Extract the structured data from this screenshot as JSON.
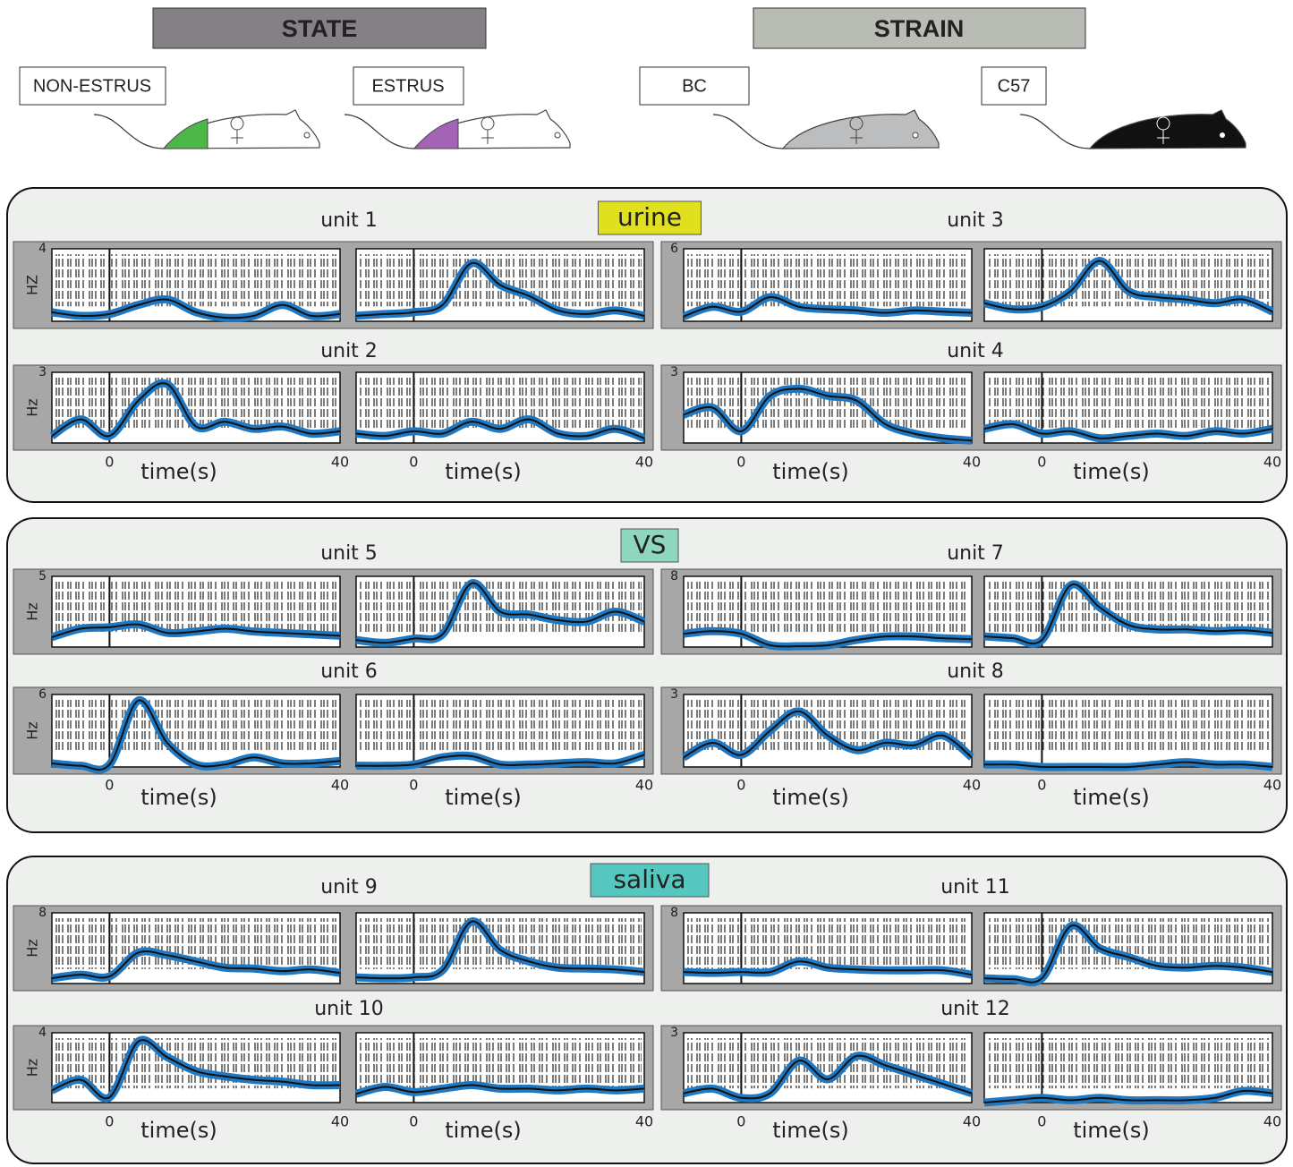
{
  "header": {
    "state": "STATE",
    "strain": "STRAIN",
    "mice": [
      "NON-ESTRUS",
      "ESTRUS",
      "BC",
      "C57"
    ]
  },
  "groups": [
    {
      "label": "urine",
      "color": "#e1e01e",
      "x": [
        -10,
        -5,
        0,
        5,
        10,
        15,
        20,
        25,
        30,
        35,
        40
      ],
      "xlim": [
        -10,
        40
      ],
      "xticks": [
        0,
        40
      ],
      "xlabel": "time(s)",
      "units": [
        {
          "name": "unit 1",
          "ylabel": "HZ",
          "ylim": [
            0,
            4
          ],
          "yticks": [
            4
          ],
          "panels": [
            [
              0.5,
              0.3,
              0.4,
              0.9,
              1.2,
              0.5,
              0.2,
              0.3,
              0.9,
              0.3,
              0.4
            ],
            [
              0.3,
              0.4,
              0.5,
              0.9,
              3.2,
              2.0,
              1.4,
              0.6,
              0.4,
              0.6,
              0.3
            ]
          ]
        },
        {
          "name": "unit 2",
          "ylabel": "Hz",
          "ylim": [
            0,
            3
          ],
          "yticks": [
            3
          ],
          "panels": [
            [
              0.3,
              1.0,
              0.3,
              1.8,
              2.5,
              0.7,
              0.9,
              0.6,
              0.7,
              0.4,
              0.5
            ],
            [
              0.4,
              0.3,
              0.5,
              0.4,
              0.9,
              0.6,
              1.0,
              0.4,
              0.3,
              0.6,
              0.2
            ]
          ]
        },
        {
          "name": "unit 3",
          "ylim": [
            0,
            6
          ],
          "yticks": [
            6
          ],
          "panels": [
            [
              0.4,
              1.2,
              0.8,
              2.0,
              1.2,
              1.0,
              0.9,
              0.7,
              0.9,
              0.8,
              0.7
            ],
            [
              1.5,
              1.0,
              1.2,
              2.5,
              5.0,
              2.5,
              2.0,
              1.8,
              1.5,
              1.8,
              0.8
            ]
          ]
        },
        {
          "name": "unit 4",
          "ylim": [
            0,
            3
          ],
          "yticks": [
            3
          ],
          "panels": [
            [
              1.2,
              1.5,
              0.5,
              2.0,
              2.3,
              2.0,
              1.8,
              0.8,
              0.4,
              0.2,
              0.1
            ],
            [
              0.6,
              0.8,
              0.4,
              0.5,
              0.2,
              0.3,
              0.4,
              0.3,
              0.5,
              0.4,
              0.6
            ]
          ]
        }
      ]
    },
    {
      "label": "VS",
      "color": "#8fd6bf",
      "x": [
        -10,
        -5,
        0,
        5,
        10,
        15,
        20,
        25,
        30,
        35,
        40
      ],
      "xlim": [
        -10,
        40
      ],
      "xticks": [
        0,
        40
      ],
      "xlabel": "time(s)",
      "units": [
        {
          "name": "unit 5",
          "ylabel": "Hz",
          "ylim": [
            0,
            5
          ],
          "yticks": [
            5
          ],
          "panels": [
            [
              0.7,
              1.3,
              1.4,
              1.6,
              1.0,
              1.1,
              1.3,
              1.1,
              1.0,
              0.9,
              0.8
            ],
            [
              0.5,
              0.3,
              0.6,
              0.9,
              4.5,
              2.5,
              2.3,
              1.9,
              1.8,
              2.5,
              1.8
            ]
          ]
        },
        {
          "name": "unit 6",
          "ylabel": "Hz",
          "ylim": [
            0,
            6
          ],
          "yticks": [
            6
          ],
          "panels": [
            [
              0.3,
              0.1,
              0.2,
              5.5,
              2.0,
              0.2,
              0.2,
              0.8,
              0.3,
              0.3,
              0.5
            ],
            [
              0.1,
              0.1,
              0.2,
              0.8,
              0.9,
              0.2,
              0.2,
              0.3,
              0.4,
              0.3,
              1.0
            ]
          ]
        },
        {
          "name": "unit 7",
          "ylim": [
            0,
            8
          ],
          "yticks": [
            8
          ],
          "panels": [
            [
              1.5,
              1.8,
              1.5,
              0.2,
              0.1,
              0.2,
              0.8,
              1.2,
              1.2,
              1.0,
              0.9
            ],
            [
              1.2,
              1.0,
              0.8,
              7.0,
              4.5,
              2.5,
              2.0,
              2.0,
              1.8,
              1.9,
              1.6
            ]
          ]
        },
        {
          "name": "unit 8",
          "ylim": [
            0,
            3
          ],
          "yticks": [
            3
          ],
          "panels": [
            [
              0.4,
              1.0,
              0.5,
              1.5,
              2.3,
              1.3,
              0.7,
              1.0,
              0.9,
              1.3,
              0.4
            ],
            [
              0.1,
              0.1,
              0.0,
              0.0,
              0.0,
              0.0,
              0.1,
              0.2,
              0.1,
              0.1,
              0.0
            ]
          ]
        }
      ]
    },
    {
      "label": "saliva",
      "color": "#55c7bf",
      "x": [
        -10,
        -5,
        0,
        5,
        10,
        15,
        20,
        25,
        30,
        35,
        40
      ],
      "xlim": [
        -10,
        40
      ],
      "xticks": [
        0,
        40
      ],
      "xlabel": "time(s)",
      "units": [
        {
          "name": "unit 9",
          "ylabel": "Hz",
          "ylim": [
            0,
            8
          ],
          "yticks": [
            8
          ],
          "panels": [
            [
              0.6,
              1.0,
              0.8,
              3.5,
              3.2,
              2.5,
              1.8,
              1.7,
              1.4,
              1.6,
              1.2
            ],
            [
              0.7,
              0.6,
              0.7,
              1.5,
              7.0,
              3.8,
              2.5,
              1.8,
              1.7,
              1.6,
              1.3
            ]
          ]
        },
        {
          "name": "unit 10",
          "ylabel": "Hz",
          "ylim": [
            0,
            4
          ],
          "yticks": [
            4
          ],
          "panels": [
            [
              0.7,
              1.3,
              0.3,
              3.5,
              2.6,
              1.8,
              1.5,
              1.3,
              1.2,
              1.0,
              1.0
            ],
            [
              0.5,
              0.9,
              0.6,
              0.8,
              1.0,
              0.8,
              0.8,
              0.7,
              0.8,
              0.7,
              0.8
            ]
          ]
        },
        {
          "name": "unit 11",
          "ylim": [
            0,
            8
          ],
          "yticks": [
            8
          ],
          "panels": [
            [
              1.3,
              1.2,
              1.3,
              1.3,
              2.5,
              1.8,
              1.6,
              1.5,
              1.5,
              1.5,
              1.0
            ],
            [
              0.6,
              0.5,
              0.6,
              6.5,
              4.0,
              3.0,
              2.0,
              1.8,
              2.0,
              1.8,
              1.3
            ]
          ]
        },
        {
          "name": "unit 12",
          "ylim": [
            0,
            3
          ],
          "yticks": [
            3
          ],
          "panels": [
            [
              0.4,
              0.6,
              0.2,
              0.4,
              1.8,
              1.0,
              2.0,
              1.6,
              1.2,
              0.8,
              0.4
            ],
            [
              0.0,
              0.1,
              0.2,
              0.1,
              0.2,
              0.1,
              0.1,
              0.1,
              0.2,
              0.5,
              0.4
            ]
          ]
        }
      ]
    }
  ]
}
